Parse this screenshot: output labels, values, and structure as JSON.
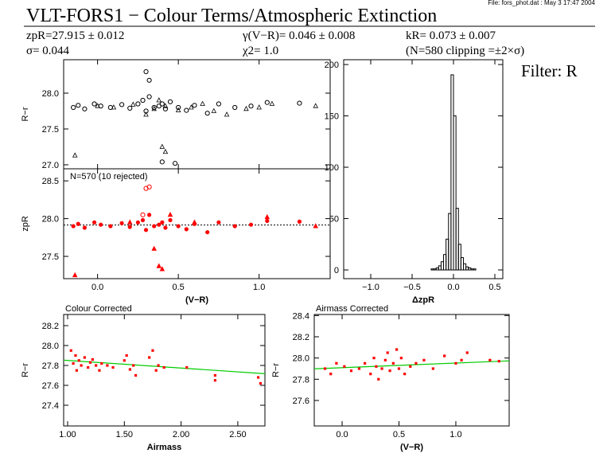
{
  "header": {
    "file": "File: fors_phot.dat : May  3 17:47 2004",
    "title": "VLT-FORS1 − Colour Terms/Atmospheric Extinction",
    "zp": "zpR=27.915 ± 0.012",
    "sigma": "σ= 0.044",
    "gamma": "γ(V−R)= 0.046 ± 0.008",
    "chi": "χ2=  1.0",
    "k": "kR= 0.073 ± 0.007",
    "clip": "(N=580 clipping =±2×σ)",
    "filter": "Filter: R"
  },
  "chart_data": [
    {
      "type": "scatter",
      "ylabel": "R−r",
      "xlim": [
        -0.21,
        1.44
      ],
      "ylim": [
        26.944,
        28.467
      ],
      "xticks": [
        {
          "value": 0,
          "label": "0.0"
        },
        0.5,
        {
          "value": 1,
          "label": "1.0"
        }
      ],
      "yticks": [
        {
          "value": 27,
          "label": "27.0"
        },
        27.5,
        {
          "value": 28,
          "label": "28.0"
        }
      ],
      "series": [
        {
          "marker": "open-circle",
          "color": "#000000",
          "x": [
            -0.15,
            -0.12,
            -0.08,
            -0.02,
            0.02,
            0.08,
            0.15,
            0.2,
            0.25,
            0.28,
            0.3,
            0.32,
            0.35,
            0.38,
            0.4,
            0.42,
            0.45,
            0.5,
            0.55,
            0.6,
            0.68,
            0.75,
            0.85,
            0.95,
            1.05,
            1.25,
            0.3,
            0.32,
            0.4,
            0.48
          ],
          "values": [
            27.8,
            27.83,
            27.78,
            27.85,
            27.82,
            27.8,
            27.84,
            27.79,
            27.85,
            27.9,
            27.75,
            27.95,
            27.8,
            27.82,
            27.85,
            27.78,
            27.88,
            27.8,
            27.76,
            27.83,
            27.72,
            27.85,
            27.8,
            27.82,
            27.87,
            27.86,
            28.3,
            28.18,
            27.04,
            27.02
          ]
        },
        {
          "marker": "triangle",
          "color": "#000000",
          "x": [
            -0.14,
            0.0,
            0.1,
            0.22,
            0.3,
            0.35,
            0.38,
            0.42,
            0.5,
            0.58,
            0.65,
            0.72,
            0.8,
            0.92,
            1.0,
            1.08,
            1.35,
            0.4,
            0.42
          ],
          "values": [
            27.13,
            27.82,
            27.8,
            27.84,
            27.7,
            27.78,
            27.9,
            27.82,
            27.76,
            27.8,
            27.85,
            27.75,
            27.7,
            27.78,
            27.8,
            27.85,
            27.82,
            27.25,
            27.18
          ]
        }
      ]
    },
    {
      "type": "scatter",
      "ylabel": "zpR",
      "xlabel": "(V−R)",
      "annotation": "N=570 (10 rejected)",
      "hline": 27.915,
      "xlim": [
        -0.21,
        1.44
      ],
      "ylim": [
        27.205,
        28.66
      ],
      "xticks": [
        {
          "value": 0,
          "label": "0.0"
        },
        0.5,
        {
          "value": 1,
          "label": "1.0"
        }
      ],
      "yticks": [
        27.5,
        {
          "value": 28,
          "label": "28.0"
        },
        28.5
      ],
      "series": [
        {
          "marker": "circle",
          "color": "#ff0000",
          "x": [
            -0.15,
            -0.12,
            -0.08,
            -0.02,
            0.02,
            0.08,
            0.15,
            0.2,
            0.25,
            0.28,
            0.3,
            0.32,
            0.35,
            0.38,
            0.4,
            0.42,
            0.45,
            0.5,
            0.55,
            0.6,
            0.68,
            0.75,
            0.85,
            0.95,
            1.05,
            1.25
          ],
          "values": [
            27.9,
            27.93,
            27.88,
            27.95,
            27.92,
            27.9,
            27.94,
            27.89,
            27.95,
            27.98,
            27.85,
            28.05,
            27.9,
            27.92,
            27.95,
            27.88,
            27.98,
            27.9,
            27.86,
            27.93,
            27.82,
            27.95,
            27.9,
            27.92,
            27.97,
            27.96
          ]
        },
        {
          "marker": "open-circle",
          "color": "#ff0000",
          "x": [
            0.3,
            0.32,
            0.28
          ],
          "values": [
            28.4,
            28.42,
            28.05
          ]
        },
        {
          "marker": "triangle",
          "color": "#ff0000",
          "x": [
            -0.14,
            0.38,
            0.4,
            0.35,
            0.6,
            1.05,
            1.35,
            0.2,
            0.45
          ],
          "values": [
            27.25,
            27.37,
            27.33,
            27.6,
            27.95,
            28.02,
            27.9,
            27.95,
            28.05
          ]
        }
      ]
    },
    {
      "type": "histogram",
      "xlabel": "ΔzpR",
      "color": "#000000",
      "xlim": [
        -1.327,
        0.596
      ],
      "ylim": [
        -8.5,
        204.7
      ],
      "xticks": [
        {
          "value": -1,
          "label": "−1.0"
        },
        {
          "value": -0.5,
          "label": "−0.5"
        },
        {
          "value": 0,
          "label": "0.0"
        },
        0.5
      ],
      "yticks": [
        0,
        50,
        100,
        150,
        200
      ],
      "bins": [
        -0.3,
        -0.27,
        -0.24,
        -0.21,
        -0.18,
        -0.15,
        -0.12,
        -0.09,
        -0.06,
        -0.03,
        0,
        0.03,
        0.06,
        0.09,
        0.12,
        0.15,
        0.18,
        0.21,
        0.24,
        0.27,
        0.3
      ],
      "values": [
        0,
        1,
        1,
        2,
        4,
        8,
        15,
        30,
        55,
        190,
        150,
        60,
        25,
        12,
        6,
        3,
        2,
        1,
        1,
        0
      ]
    },
    {
      "type": "scatter",
      "title": "Colour Corrected",
      "ylabel": "R−r",
      "xlabel": "Airmass",
      "xlim": [
        0.965,
        2.739
      ],
      "ylim": [
        27.192,
        28.312
      ],
      "xticks": [
        {
          "value": 1,
          "label": "1.00"
        },
        {
          "value": 1.5,
          "label": "1.50"
        },
        {
          "value": 2,
          "label": "2.00"
        },
        {
          "value": 2.5,
          "label": "2.50"
        }
      ],
      "yticks": [
        27.4,
        27.6,
        27.8,
        {
          "value": 28,
          "label": "28.0"
        },
        28.2
      ],
      "fit": {
        "color": "#00cc00",
        "x": [
          0.965,
          2.739
        ],
        "values": [
          27.853,
          27.717
        ]
      },
      "series": [
        {
          "marker": "square",
          "color": "#ff0000",
          "x": [
            1.03,
            1.05,
            1.07,
            1.08,
            1.1,
            1.12,
            1.15,
            1.18,
            1.2,
            1.22,
            1.25,
            1.28,
            1.3,
            1.35,
            1.4,
            1.5,
            1.52,
            1.55,
            1.58,
            1.6,
            1.72,
            1.75,
            1.78,
            1.8,
            1.85,
            2.05,
            2.3,
            2.3,
            2.7,
            2.68
          ],
          "values": [
            27.95,
            27.82,
            27.9,
            27.75,
            27.85,
            27.8,
            27.88,
            27.78,
            27.83,
            27.86,
            27.8,
            27.75,
            27.82,
            27.8,
            27.78,
            27.85,
            27.9,
            27.76,
            27.8,
            27.7,
            27.88,
            27.95,
            27.75,
            27.8,
            27.78,
            27.78,
            27.7,
            27.65,
            27.62,
            27.68
          ]
        }
      ]
    },
    {
      "type": "scatter",
      "title": "Airmass Corrected",
      "ylabel": "R−r",
      "xlabel": "(V−R)",
      "xlim": [
        -0.245,
        1.469
      ],
      "ylim": [
        27.36,
        28.41
      ],
      "xticks": [
        {
          "value": 0,
          "label": "0.0"
        },
        0.5,
        {
          "value": 1,
          "label": "1.0"
        }
      ],
      "yticks": [
        27.6,
        27.8,
        {
          "value": 28,
          "label": "28.0"
        },
        28.2,
        28.4
      ],
      "fit": {
        "color": "#00cc00",
        "x": [
          -0.245,
          1.469
        ],
        "values": [
          27.898,
          27.973
        ]
      },
      "series": [
        {
          "marker": "square",
          "color": "#ff0000",
          "x": [
            -0.15,
            -0.1,
            -0.05,
            0.02,
            0.08,
            0.15,
            0.2,
            0.25,
            0.28,
            0.3,
            0.32,
            0.35,
            0.38,
            0.4,
            0.42,
            0.45,
            0.48,
            0.5,
            0.52,
            0.55,
            0.6,
            0.65,
            0.72,
            0.8,
            0.9,
            1.0,
            1.05,
            1.1,
            1.3,
            1.38
          ],
          "values": [
            27.9,
            27.85,
            27.95,
            27.92,
            27.88,
            27.9,
            27.95,
            27.85,
            28.0,
            27.92,
            27.8,
            27.9,
            27.98,
            28.05,
            27.88,
            27.95,
            28.08,
            27.9,
            28.0,
            27.85,
            27.92,
            27.95,
            27.98,
            27.9,
            28.02,
            27.95,
            27.98,
            28.05,
            27.98,
            27.97
          ]
        }
      ]
    }
  ]
}
